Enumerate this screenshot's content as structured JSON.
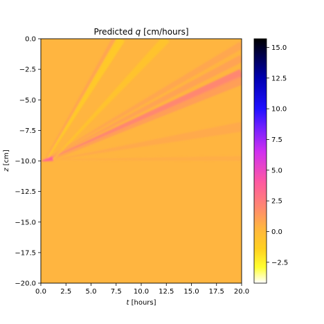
{
  "chart_data": {
    "type": "heatmap",
    "title_prefix": "Predicted ",
    "title_var": "q",
    "title_suffix": " [cm/hours]",
    "xlabel_var": "t",
    "xlabel_unit": " [hours]",
    "ylabel_var": "z",
    "ylabel_unit": " [cm]",
    "xlim": [
      0,
      20
    ],
    "ylim": [
      -20,
      0
    ],
    "x_ticks": [
      0,
      2.5,
      5,
      7.5,
      10,
      12.5,
      15,
      17.5,
      20
    ],
    "x_tick_labels": [
      "0.0",
      "2.5",
      "5.0",
      "7.5",
      "10.0",
      "12.5",
      "15.0",
      "17.5",
      "20.0"
    ],
    "y_ticks": [
      0,
      -2.5,
      -5,
      -7.5,
      -10,
      -12.5,
      -15,
      -17.5,
      -20
    ],
    "y_tick_labels": [
      "0.0",
      "−2.5",
      "−5.0",
      "−7.5",
      "−10.0",
      "−12.5",
      "−15.0",
      "−17.5",
      "−20.0"
    ],
    "background_value": 0.3,
    "colorbar": {
      "range": [
        -4.2,
        15.7
      ],
      "ticks": [
        -2.5,
        0,
        2.5,
        5,
        7.5,
        10,
        12.5,
        15
      ],
      "tick_labels": [
        "−2.5",
        "0.0",
        "2.5",
        "5.0",
        "7.5",
        "10.0",
        "12.5",
        "15.0"
      ],
      "colormap": "gnuplot2_r",
      "stops": [
        {
          "v": -4.2,
          "color": "#ffffff"
        },
        {
          "v": -2.9,
          "color": "#ffff30"
        },
        {
          "v": -1.4,
          "color": "#ffd020"
        },
        {
          "v": 0.3,
          "color": "#ffb540"
        },
        {
          "v": 2.0,
          "color": "#ff8870"
        },
        {
          "v": 4.0,
          "color": "#ff5aa0"
        },
        {
          "v": 6.5,
          "color": "#d030f0"
        },
        {
          "v": 8.5,
          "color": "#7020ff"
        },
        {
          "v": 10.0,
          "color": "#2010ff"
        },
        {
          "v": 12.5,
          "color": "#0000b0"
        },
        {
          "v": 15.7,
          "color": "#000000"
        }
      ]
    },
    "features": [
      {
        "name": "main-front",
        "from": [
          0.4,
          -10.0
        ],
        "to": [
          20,
          -2.8
        ],
        "value": 2.4,
        "width_cm": 0.35
      },
      {
        "name": "secondary-front",
        "from": [
          1.4,
          -9.8
        ],
        "to": [
          20,
          -3.4
        ],
        "value": 1.3,
        "width_cm": 0.35
      },
      {
        "name": "upper-streak",
        "from": [
          0.6,
          -9.8
        ],
        "to": [
          20,
          -0.5
        ],
        "value": 0.9,
        "width_cm": 0.3
      },
      {
        "name": "streak-2",
        "from": [
          0.8,
          -9.8
        ],
        "to": [
          20,
          -1.6
        ],
        "value": 1.1,
        "width_cm": 0.3
      },
      {
        "name": "steep-front",
        "from": [
          0.4,
          -9.9
        ],
        "to": [
          7.4,
          0
        ],
        "value": 1.0,
        "width_cm": 0.25
      },
      {
        "name": "steep-dry-streak",
        "from": [
          0.6,
          -9.9
        ],
        "to": [
          8.0,
          0
        ],
        "value": -1.2,
        "width_cm": 0.35
      },
      {
        "name": "dry-streak-2",
        "from": [
          1.2,
          -9.9
        ],
        "to": [
          12.5,
          0
        ],
        "value": -0.8,
        "width_cm": 0.35
      },
      {
        "name": "shallow-band",
        "from": [
          2.0,
          -9.8
        ],
        "to": [
          20,
          -7.2
        ],
        "value": 0.8,
        "width_cm": 0.4
      },
      {
        "name": "horizontal-band",
        "from": [
          0.5,
          -9.9
        ],
        "to": [
          20,
          -9.8
        ],
        "value": 0.6,
        "width_cm": 0.2
      },
      {
        "name": "source-spot",
        "from": [
          0.1,
          -10.0
        ],
        "to": [
          1.2,
          -9.8
        ],
        "value": 4.0,
        "width_cm": 0.2
      }
    ]
  }
}
